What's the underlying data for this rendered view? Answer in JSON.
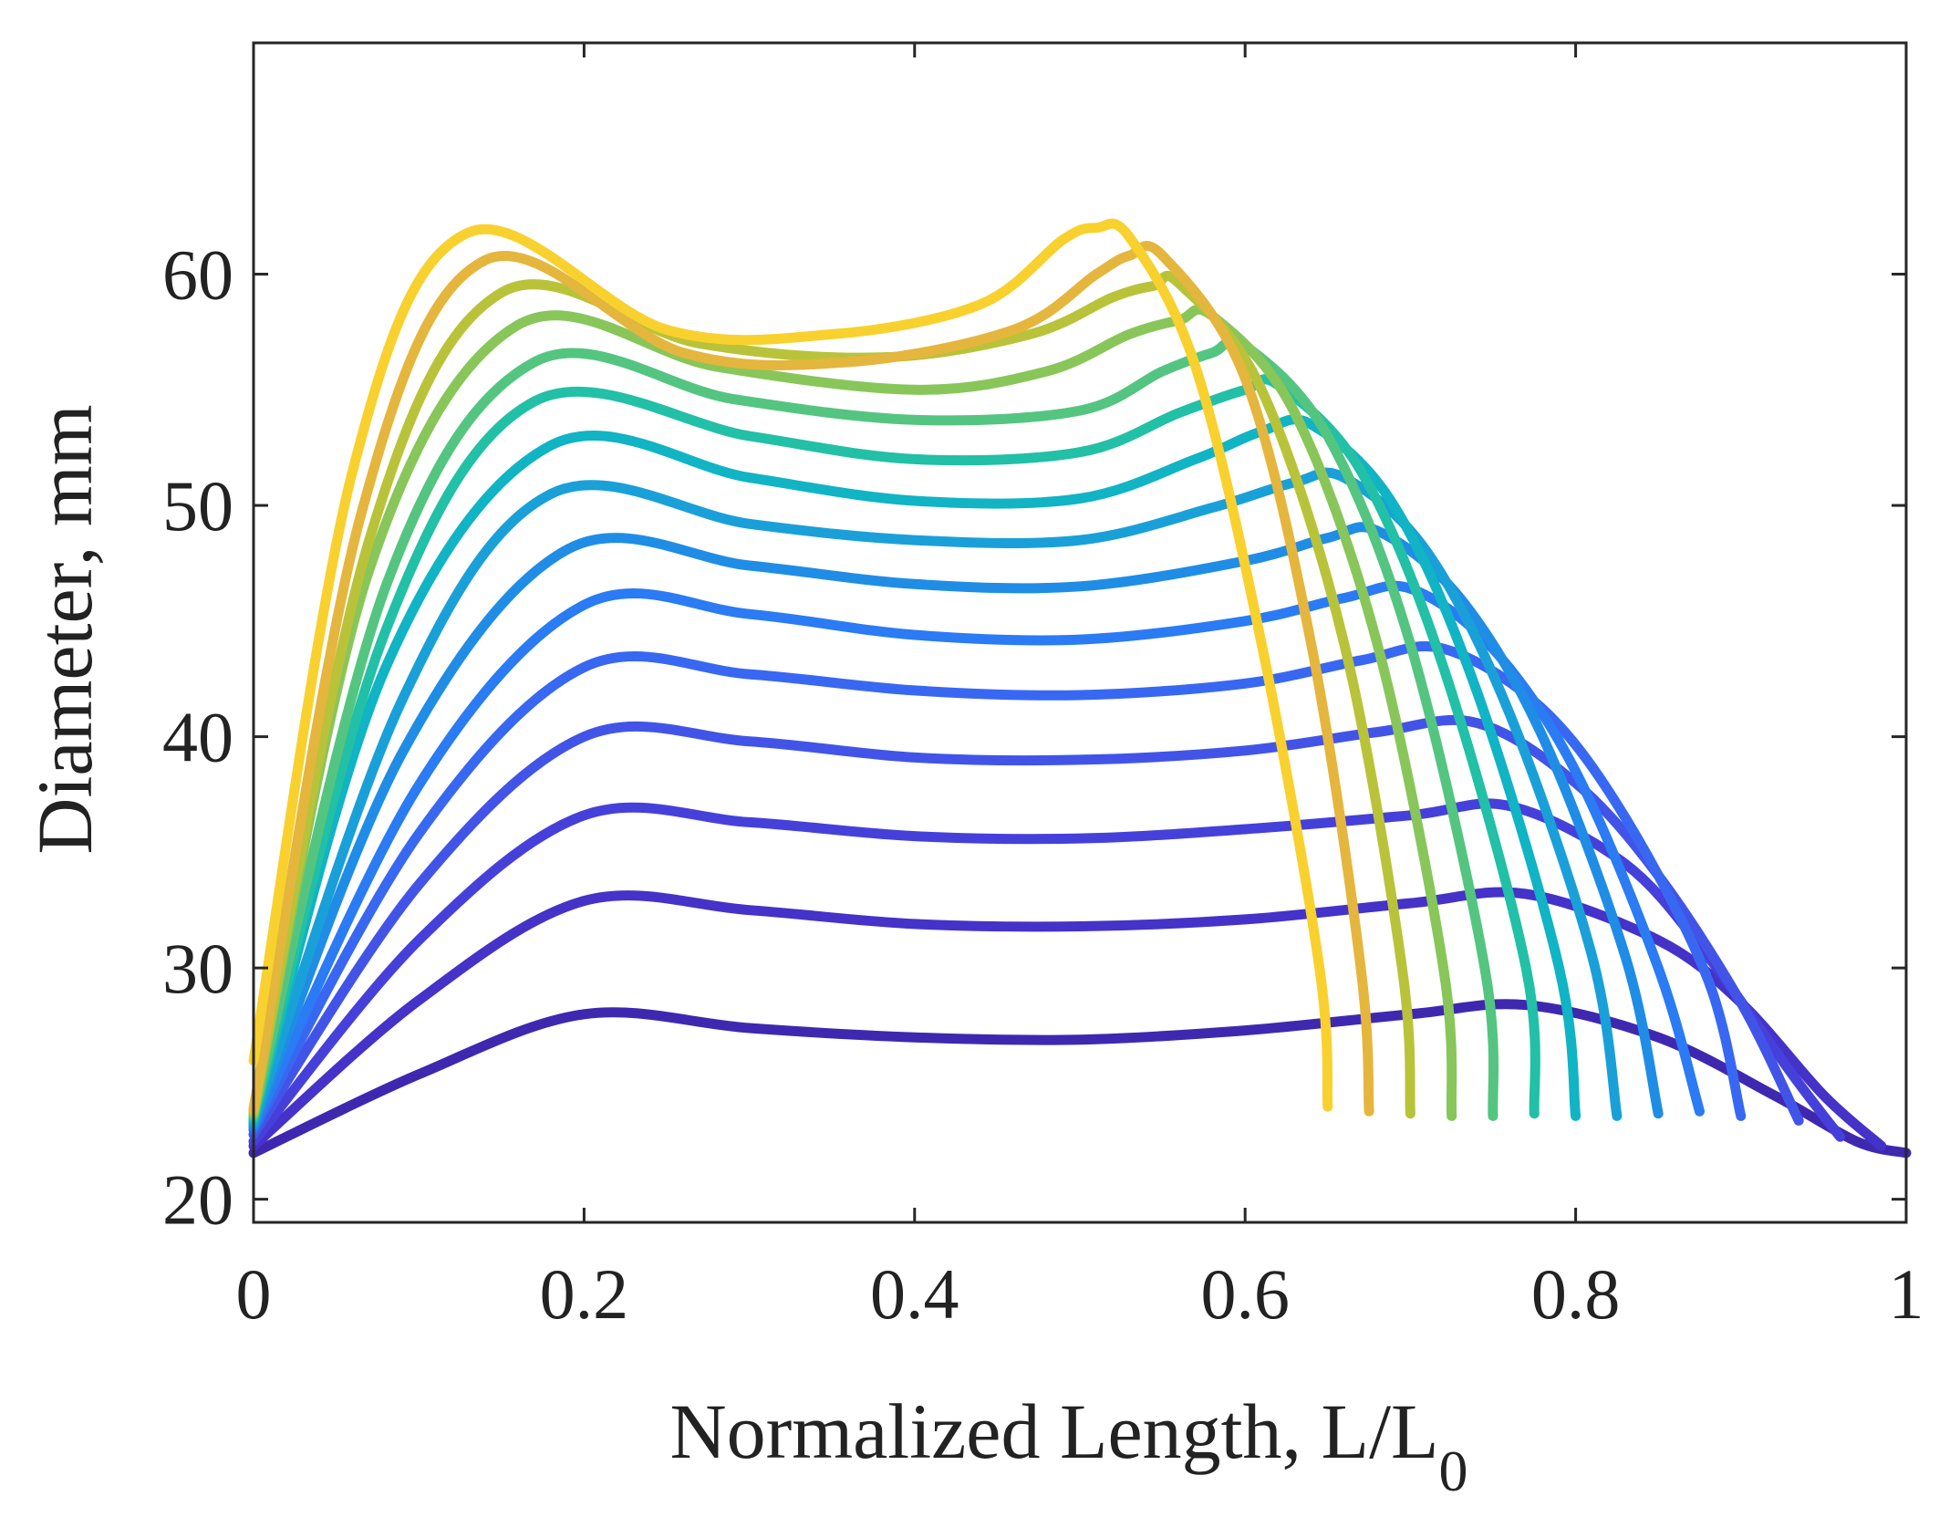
{
  "chart_data": {
    "type": "line",
    "title": "",
    "xlabel": "Normalized Length, L/L",
    "xlabel_subscript": "0",
    "ylabel": "Diameter, mm",
    "xlim": [
      0,
      1
    ],
    "ylim": [
      19,
      70
    ],
    "x_ticks": [
      "0",
      "0.2",
      "0.4",
      "0.6",
      "0.8",
      "1"
    ],
    "y_ticks": [
      "20",
      "30",
      "40",
      "50",
      "60"
    ],
    "x_tick_values": [
      0,
      0.2,
      0.4,
      0.6,
      0.8,
      1
    ],
    "y_tick_values": [
      20,
      30,
      40,
      50,
      60
    ],
    "grid": false,
    "legend": "none",
    "colormap": "parula (dark blue to yellow)",
    "series": [
      {
        "name": "curve-1",
        "color": "#3f28b0",
        "x": [
          0.0,
          0.1,
          0.2,
          0.3,
          0.4,
          0.5,
          0.6,
          0.7,
          0.77,
          0.85,
          0.92,
          0.97,
          1.0
        ],
        "y": [
          22.0,
          25.4,
          28.0,
          27.4,
          27.0,
          26.9,
          27.3,
          28.0,
          28.4,
          27.0,
          24.5,
          22.5,
          22.0
        ]
      },
      {
        "name": "curve-2",
        "color": "#4432c9",
        "x": [
          0.0,
          0.1,
          0.2,
          0.3,
          0.4,
          0.5,
          0.6,
          0.7,
          0.77,
          0.85,
          0.9,
          0.95,
          0.985
        ],
        "y": [
          22.3,
          28.6,
          32.9,
          32.5,
          31.9,
          31.8,
          32.1,
          32.8,
          33.2,
          31.2,
          28.5,
          24.5,
          22.3
        ]
      },
      {
        "name": "curve-3",
        "color": "#4640da",
        "x": [
          0.0,
          0.1,
          0.2,
          0.3,
          0.4,
          0.5,
          0.6,
          0.7,
          0.76,
          0.83,
          0.88,
          0.93,
          0.96
        ],
        "y": [
          22.5,
          31.2,
          36.6,
          36.3,
          35.7,
          35.6,
          36.0,
          36.6,
          37.0,
          34.5,
          30.5,
          25.5,
          22.7
        ]
      },
      {
        "name": "curve-4",
        "color": "#4254e8",
        "x": [
          0.0,
          0.1,
          0.2,
          0.3,
          0.4,
          0.5,
          0.6,
          0.68,
          0.74,
          0.8,
          0.85,
          0.9,
          0.935
        ],
        "y": [
          22.8,
          33.6,
          40.0,
          39.8,
          39.1,
          39.0,
          39.4,
          40.2,
          40.6,
          38.0,
          34.0,
          28.5,
          23.4
        ]
      },
      {
        "name": "curve-5",
        "color": "#3868f2",
        "x": [
          0.0,
          0.1,
          0.2,
          0.3,
          0.4,
          0.5,
          0.6,
          0.67,
          0.72,
          0.78,
          0.83,
          0.88,
          0.9
        ],
        "y": [
          23.0,
          35.8,
          43.0,
          42.7,
          42.0,
          41.8,
          42.3,
          43.3,
          43.8,
          41.2,
          36.5,
          29.5,
          23.6
        ]
      },
      {
        "name": "curve-6",
        "color": "#2a7bf4",
        "x": [
          0.0,
          0.1,
          0.2,
          0.3,
          0.4,
          0.5,
          0.6,
          0.66,
          0.7,
          0.75,
          0.8,
          0.85,
          0.875
        ],
        "y": [
          23.1,
          37.9,
          45.7,
          45.3,
          44.4,
          44.2,
          45.0,
          46.0,
          46.4,
          43.8,
          38.5,
          30.0,
          23.8
        ]
      },
      {
        "name": "curve-7",
        "color": "#1f8de6",
        "x": [
          0.0,
          0.09,
          0.19,
          0.3,
          0.4,
          0.5,
          0.6,
          0.65,
          0.68,
          0.73,
          0.78,
          0.83,
          0.85
        ],
        "y": [
          23.2,
          39.3,
          48.1,
          47.4,
          46.6,
          46.5,
          47.6,
          48.6,
          48.9,
          46.0,
          40.0,
          30.5,
          23.7
        ]
      },
      {
        "name": "curve-8",
        "color": "#1aa0d8",
        "x": [
          0.0,
          0.09,
          0.18,
          0.3,
          0.4,
          0.5,
          0.58,
          0.63,
          0.66,
          0.71,
          0.76,
          0.81,
          0.825
        ],
        "y": [
          23.3,
          41.6,
          50.5,
          49.2,
          48.5,
          48.5,
          49.9,
          51.0,
          51.2,
          48.0,
          41.0,
          30.5,
          23.6
        ]
      },
      {
        "name": "curve-9",
        "color": "#10b4c4",
        "x": [
          0.0,
          0.08,
          0.18,
          0.3,
          0.4,
          0.5,
          0.57,
          0.61,
          0.64,
          0.69,
          0.74,
          0.79,
          0.8
        ],
        "y": [
          23.4,
          43.0,
          52.6,
          51.2,
          50.2,
          50.3,
          52.0,
          53.2,
          53.5,
          50.0,
          42.0,
          30.0,
          23.6
        ]
      },
      {
        "name": "curve-10",
        "color": "#22c0a6",
        "x": [
          0.0,
          0.08,
          0.17,
          0.3,
          0.4,
          0.5,
          0.56,
          0.6,
          0.62,
          0.67,
          0.72,
          0.77,
          0.775
        ],
        "y": [
          23.5,
          44.6,
          54.5,
          53.0,
          52.0,
          52.3,
          54.0,
          55.0,
          55.2,
          51.5,
          43.0,
          30.0,
          23.7
        ]
      },
      {
        "name": "curve-11",
        "color": "#54c580",
        "x": [
          0.0,
          0.08,
          0.17,
          0.29,
          0.4,
          0.5,
          0.55,
          0.58,
          0.6,
          0.65,
          0.7,
          0.745,
          0.75
        ],
        "y": [
          23.6,
          46.5,
          56.2,
          54.6,
          53.7,
          54.1,
          55.8,
          56.6,
          56.9,
          53.0,
          44.0,
          30.0,
          23.6
        ]
      },
      {
        "name": "curve-12",
        "color": "#88c65a",
        "x": [
          0.0,
          0.07,
          0.16,
          0.28,
          0.4,
          0.48,
          0.53,
          0.56,
          0.58,
          0.63,
          0.68,
          0.72,
          0.725
        ],
        "y": [
          23.7,
          47.2,
          57.8,
          56.0,
          55.0,
          55.8,
          57.4,
          58.0,
          58.2,
          54.0,
          44.0,
          30.0,
          23.6
        ]
      },
      {
        "name": "curve-13",
        "color": "#b9c33a",
        "x": [
          0.0,
          0.07,
          0.15,
          0.27,
          0.38,
          0.47,
          0.52,
          0.545,
          0.56,
          0.61,
          0.66,
          0.695,
          0.7
        ],
        "y": [
          23.8,
          48.5,
          59.2,
          57.0,
          56.4,
          57.4,
          59.0,
          59.5,
          59.6,
          55.0,
          44.0,
          30.0,
          23.7
        ]
      },
      {
        "name": "curve-14",
        "color": "#e5b63d",
        "x": [
          0.0,
          0.065,
          0.14,
          0.26,
          0.36,
          0.46,
          0.51,
          0.53,
          0.55,
          0.6,
          0.64,
          0.67,
          0.675
        ],
        "y": [
          23.9,
          49.6,
          60.6,
          56.6,
          56.2,
          57.6,
          60.0,
          60.8,
          60.8,
          55.5,
          44.0,
          30.0,
          23.8
        ]
      },
      {
        "name": "curve-15",
        "color": "#f9d12e",
        "x": [
          0.0,
          0.06,
          0.13,
          0.25,
          0.35,
          0.44,
          0.49,
          0.51,
          0.53,
          0.57,
          0.61,
          0.645,
          0.65
        ],
        "y": [
          26.0,
          51.5,
          61.8,
          57.6,
          57.4,
          58.7,
          61.5,
          62.0,
          61.6,
          56.0,
          44.0,
          30.0,
          24.0
        ]
      }
    ]
  }
}
